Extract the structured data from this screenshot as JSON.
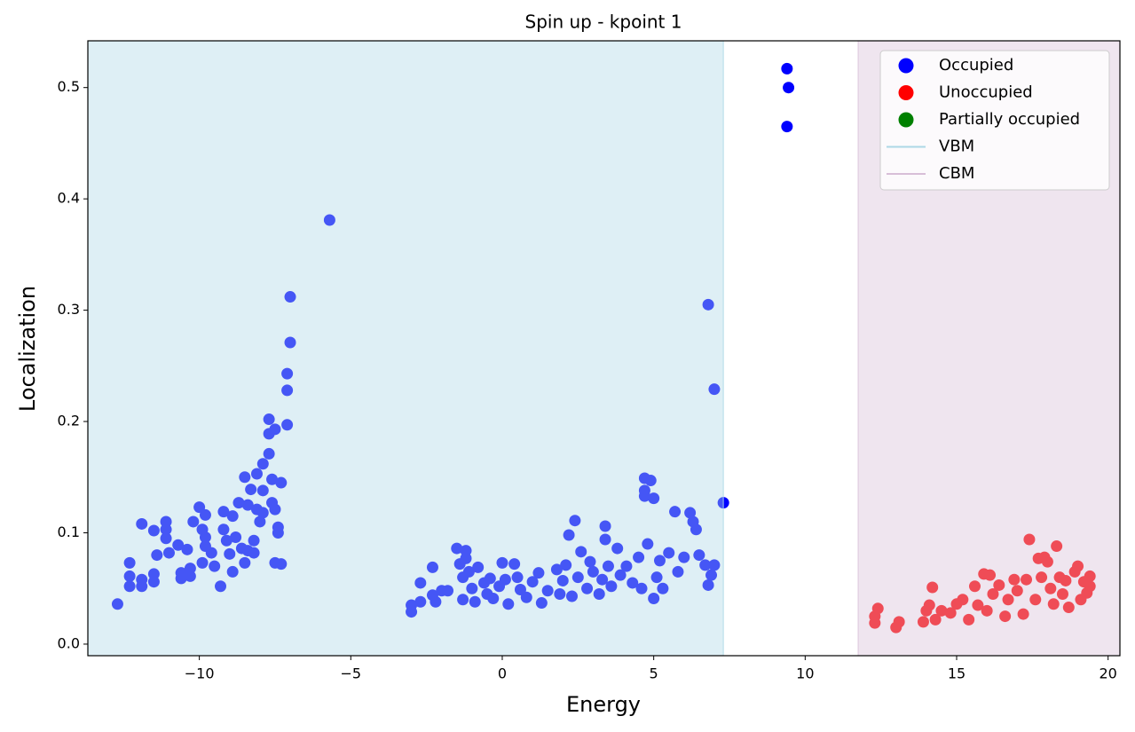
{
  "chart_data": {
    "type": "scatter",
    "title": "Spin up - kpoint 1",
    "x_label": "Energy",
    "y_label": "Localization",
    "xlim": [
      -13.68,
      20.39
    ],
    "ylim": [
      -0.0104,
      0.542
    ],
    "xticks": [
      {
        "value": -10,
        "label": "−10"
      },
      {
        "value": -5,
        "label": "−5"
      },
      0,
      5,
      10,
      15,
      20
    ],
    "yticks": [
      {
        "value": 0,
        "label": "0.0"
      },
      0.1,
      0.2,
      0.3,
      0.4,
      0.5
    ],
    "legend": "upper right",
    "series": [
      {
        "name": "Occupied",
        "color": "#0000ff",
        "x": [
          -12.7,
          -12.3,
          -12.3,
          -12.3,
          -11.9,
          -11.9,
          -11.9,
          -11.5,
          -11.5,
          -11.5,
          -11.4,
          -11.1,
          -11.1,
          -11.1,
          -11.0,
          -10.7,
          -10.6,
          -10.6,
          -10.4,
          -10.3,
          -10.3,
          -10.2,
          -10.0,
          -9.9,
          -9.9,
          -9.8,
          -9.8,
          -9.8,
          -9.6,
          -9.5,
          -9.3,
          -9.2,
          -9.2,
          -9.1,
          -9.0,
          -8.9,
          -8.9,
          -8.8,
          -8.7,
          -8.6,
          -8.5,
          -8.5,
          -8.4,
          -8.4,
          -8.3,
          -8.2,
          -8.2,
          -8.1,
          -8.1,
          -8.0,
          -7.9,
          -7.9,
          -7.9,
          -7.7,
          -7.7,
          -7.7,
          -7.6,
          -7.6,
          -7.5,
          -7.5,
          -7.5,
          -7.4,
          -7.4,
          -7.3,
          -7.3,
          -7.1,
          -7.1,
          -7.1,
          -7.0,
          -7.0,
          -5.7,
          -3.0,
          -3.0,
          -2.7,
          -2.7,
          -2.3,
          -2.3,
          -2.2,
          -2.0,
          -1.8,
          -1.5,
          -1.4,
          -1.3,
          -1.3,
          -1.2,
          -1.2,
          -1.1,
          -1.0,
          -0.9,
          -0.8,
          -0.6,
          -0.5,
          -0.4,
          -0.3,
          -0.1,
          0.0,
          0.1,
          0.2,
          0.4,
          0.5,
          0.6,
          0.8,
          1.0,
          1.2,
          1.3,
          1.5,
          1.8,
          1.9,
          2.0,
          2.1,
          2.2,
          2.3,
          2.4,
          2.5,
          2.6,
          2.8,
          2.9,
          3.0,
          3.2,
          3.3,
          3.4,
          3.4,
          3.5,
          3.6,
          3.8,
          3.9,
          4.1,
          4.3,
          4.5,
          4.6,
          4.7,
          4.7,
          4.7,
          4.8,
          4.9,
          5.0,
          5.0,
          5.1,
          5.2,
          5.3,
          5.5,
          5.7,
          5.8,
          6.0,
          6.2,
          6.3,
          6.4,
          6.5,
          6.7,
          6.8,
          6.8,
          6.9,
          7.0,
          7.0,
          7.3,
          9.4,
          9.45,
          9.4
        ],
        "y": [
          0.036,
          0.073,
          0.061,
          0.052,
          0.108,
          0.058,
          0.052,
          0.102,
          0.063,
          0.056,
          0.08,
          0.11,
          0.103,
          0.095,
          0.082,
          0.089,
          0.064,
          0.059,
          0.085,
          0.068,
          0.061,
          0.11,
          0.123,
          0.103,
          0.073,
          0.116,
          0.096,
          0.088,
          0.082,
          0.07,
          0.052,
          0.119,
          0.103,
          0.093,
          0.081,
          0.065,
          0.115,
          0.096,
          0.127,
          0.086,
          0.15,
          0.073,
          0.125,
          0.084,
          0.139,
          0.093,
          0.082,
          0.153,
          0.121,
          0.11,
          0.162,
          0.138,
          0.118,
          0.202,
          0.189,
          0.171,
          0.148,
          0.127,
          0.193,
          0.121,
          0.073,
          0.105,
          0.1,
          0.145,
          0.072,
          0.243,
          0.228,
          0.197,
          0.312,
          0.271,
          0.381,
          0.029,
          0.035,
          0.055,
          0.038,
          0.069,
          0.044,
          0.038,
          0.048,
          0.048,
          0.086,
          0.072,
          0.06,
          0.04,
          0.084,
          0.077,
          0.065,
          0.05,
          0.038,
          0.069,
          0.055,
          0.045,
          0.059,
          0.041,
          0.052,
          0.073,
          0.058,
          0.036,
          0.072,
          0.06,
          0.049,
          0.042,
          0.056,
          0.064,
          0.037,
          0.048,
          0.067,
          0.045,
          0.057,
          0.071,
          0.098,
          0.043,
          0.111,
          0.06,
          0.083,
          0.05,
          0.074,
          0.065,
          0.045,
          0.058,
          0.094,
          0.106,
          0.07,
          0.052,
          0.086,
          0.062,
          0.07,
          0.055,
          0.078,
          0.05,
          0.149,
          0.138,
          0.133,
          0.09,
          0.147,
          0.041,
          0.131,
          0.06,
          0.075,
          0.05,
          0.082,
          0.119,
          0.065,
          0.078,
          0.118,
          0.11,
          0.103,
          0.08,
          0.071,
          0.305,
          0.053,
          0.062,
          0.229,
          0.071,
          0.127,
          0.517,
          0.5,
          0.465
        ]
      },
      {
        "name": "Unoccupied",
        "color": "#ff0000",
        "x": [
          12.3,
          12.3,
          12.4,
          13.0,
          13.1,
          13.9,
          14.0,
          14.1,
          14.2,
          14.3,
          14.5,
          14.8,
          15.0,
          15.2,
          15.4,
          15.6,
          15.7,
          15.9,
          16.0,
          16.1,
          16.2,
          16.4,
          16.6,
          16.7,
          16.9,
          17.0,
          17.2,
          17.3,
          17.4,
          17.6,
          17.7,
          17.8,
          17.9,
          18.0,
          18.1,
          18.2,
          18.3,
          18.4,
          18.5,
          18.6,
          18.7,
          18.9,
          19.0,
          19.1,
          19.2,
          19.3,
          19.4,
          19.4
        ],
        "y": [
          0.019,
          0.025,
          0.032,
          0.015,
          0.02,
          0.02,
          0.03,
          0.035,
          0.051,
          0.022,
          0.03,
          0.028,
          0.036,
          0.04,
          0.022,
          0.052,
          0.035,
          0.063,
          0.03,
          0.062,
          0.045,
          0.053,
          0.025,
          0.04,
          0.058,
          0.048,
          0.027,
          0.058,
          0.094,
          0.04,
          0.077,
          0.06,
          0.078,
          0.074,
          0.05,
          0.036,
          0.088,
          0.06,
          0.045,
          0.057,
          0.033,
          0.065,
          0.07,
          0.04,
          0.056,
          0.046,
          0.061,
          0.052
        ]
      },
      {
        "name": "Partially occupied",
        "color": "#008000",
        "x": [],
        "y": []
      }
    ],
    "bands": [
      {
        "name": "VBM",
        "value": 7.3,
        "color": "#add8e6",
        "side": "left"
      },
      {
        "name": "CBM",
        "value": 11.75,
        "color": "#d8bfd8",
        "side": "right"
      }
    ]
  }
}
